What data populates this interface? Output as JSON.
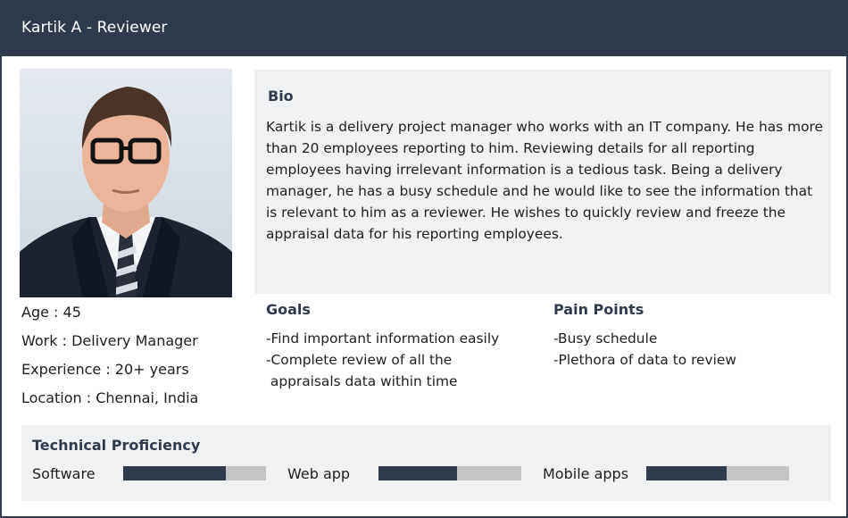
{
  "header": {
    "title": "Kartik A - Reviewer"
  },
  "profile": {
    "photo_alt": "Portrait of Kartik A",
    "age": "Age : 45",
    "work": "Work : Delivery Manager",
    "experience": "Experience : 20+ years",
    "location": "Location : Chennai, India"
  },
  "bio": {
    "title": "Bio",
    "text": "Kartik is a delivery project manager who works with an IT company. He has more than 20 employees reporting to him. Reviewing details for all reporting employees having irrelevant information is a tedious task. Being a delivery manager, he has a busy schedule and he would like to see the information that is relevant to him as a reviewer. He wishes to quickly review and freeze the appraisal data for his reporting employees."
  },
  "goals": {
    "title": "Goals",
    "items": [
      "-Find important information easily",
      "-Complete review of all the",
      " appraisals data within time"
    ]
  },
  "pain_points": {
    "title": "Pain Points",
    "items": [
      "-Busy schedule",
      "-Plethora of data to review"
    ]
  },
  "technical": {
    "title": "Technical Proficiency",
    "skills": [
      {
        "label": "Software",
        "level": 0.72
      },
      {
        "label": "Web app",
        "level": 0.55
      },
      {
        "label": "Mobile apps",
        "level": 0.56
      }
    ]
  },
  "colors": {
    "header_bg": "#2f3b4c",
    "panel_bg": "#f0f1f3",
    "bar_fill": "#2f3b4c",
    "bar_track": "#c4c4c4"
  }
}
